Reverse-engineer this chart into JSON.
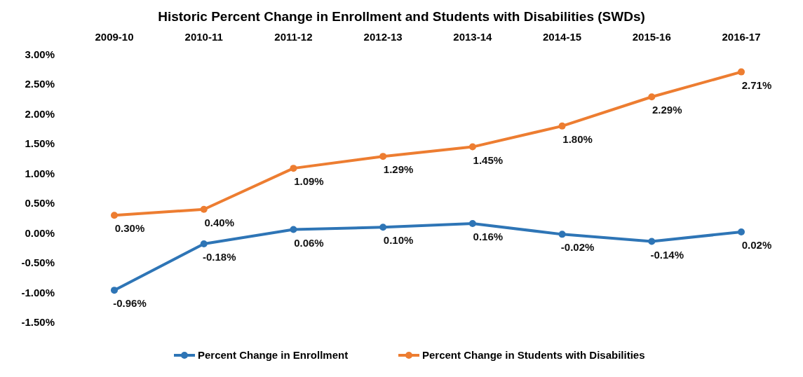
{
  "chart_data": {
    "type": "line",
    "title": "Historic Percent Change in Enrollment and Students with Disabilities (SWDs)",
    "categories": [
      "2009-10",
      "2010-11",
      "2011-12",
      "2012-13",
      "2013-14",
      "2014-15",
      "2015-16",
      "2016-17"
    ],
    "series": [
      {
        "name": "Percent Change in Enrollment",
        "color": "#2e75b6",
        "values": [
          -0.96,
          -0.18,
          0.06,
          0.1,
          0.16,
          -0.02,
          -0.14,
          0.02
        ],
        "value_labels": [
          "-0.96%",
          "-0.18%",
          "0.06%",
          "0.10%",
          "0.16%",
          "-0.02%",
          "-0.14%",
          "0.02%"
        ]
      },
      {
        "name": "Percent Change in Students with Disabilities",
        "color": "#ed7d31",
        "values": [
          0.3,
          0.4,
          1.09,
          1.29,
          1.45,
          1.8,
          2.29,
          2.71
        ],
        "value_labels": [
          "0.30%",
          "0.40%",
          "1.09%",
          "1.29%",
          "1.45%",
          "1.80%",
          "2.29%",
          "2.71%"
        ]
      }
    ],
    "ylim": [
      -1.5,
      3.0
    ],
    "yticks": [
      {
        "value": 3,
        "label": "3.00%"
      },
      {
        "value": 2.5,
        "label": "2.50%"
      },
      {
        "value": 2,
        "label": "2.00%"
      },
      {
        "value": 1.5,
        "label": "1.50%"
      },
      {
        "value": 1,
        "label": "1.00%"
      },
      {
        "value": 0.5,
        "label": "0.50%"
      },
      {
        "value": 0,
        "label": "0.00%"
      },
      {
        "value": -0.5,
        "label": "-0.50%"
      },
      {
        "value": -1,
        "label": "-1.00%"
      },
      {
        "value": -1.5,
        "label": "-1.50%"
      }
    ],
    "legend": "bottom",
    "marker": "circle",
    "line_style": "solid"
  }
}
